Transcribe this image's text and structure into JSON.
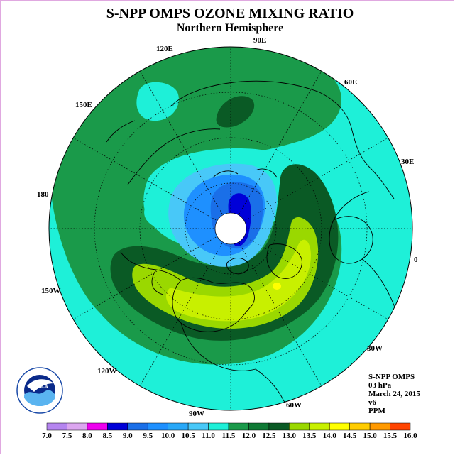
{
  "title": "S-NPP OMPS OZONE MIXING RATIO",
  "subtitle": "Northern Hemisphere",
  "longitude_labels": [
    "90E",
    "60E",
    "30E",
    "0",
    "30W",
    "60W",
    "90W",
    "120W",
    "150W",
    "180",
    "150E",
    "120E"
  ],
  "info": {
    "instrument": "S-NPP OMPS",
    "level": "03 hPa",
    "date": "March 24, 2015",
    "version": "v6",
    "units": "PPM"
  },
  "colorbar": {
    "ticks": [
      "7.0",
      "7.5",
      "8.0",
      "8.5",
      "9.0",
      "9.5",
      "10.0",
      "10.5",
      "11.0",
      "11.5",
      "12.0",
      "12.5",
      "13.0",
      "13.5",
      "14.0",
      "14.5",
      "15.0",
      "15.5",
      "16.0"
    ],
    "colors": [
      "#b585f0",
      "#dca6f0",
      "#ee00ee",
      "#0000d8",
      "#1a6fe8",
      "#1e90ff",
      "#28a8f8",
      "#48c8f8",
      "#1ef0d8",
      "#1a9a4a",
      "#0f7a35",
      "#0a5a25",
      "#9ad800",
      "#c8f000",
      "#ffff00",
      "#ffcc00",
      "#ff9900",
      "#ff4400",
      "#ee0000",
      "#8b5a2b"
    ]
  },
  "logo_text": "NOAA"
}
